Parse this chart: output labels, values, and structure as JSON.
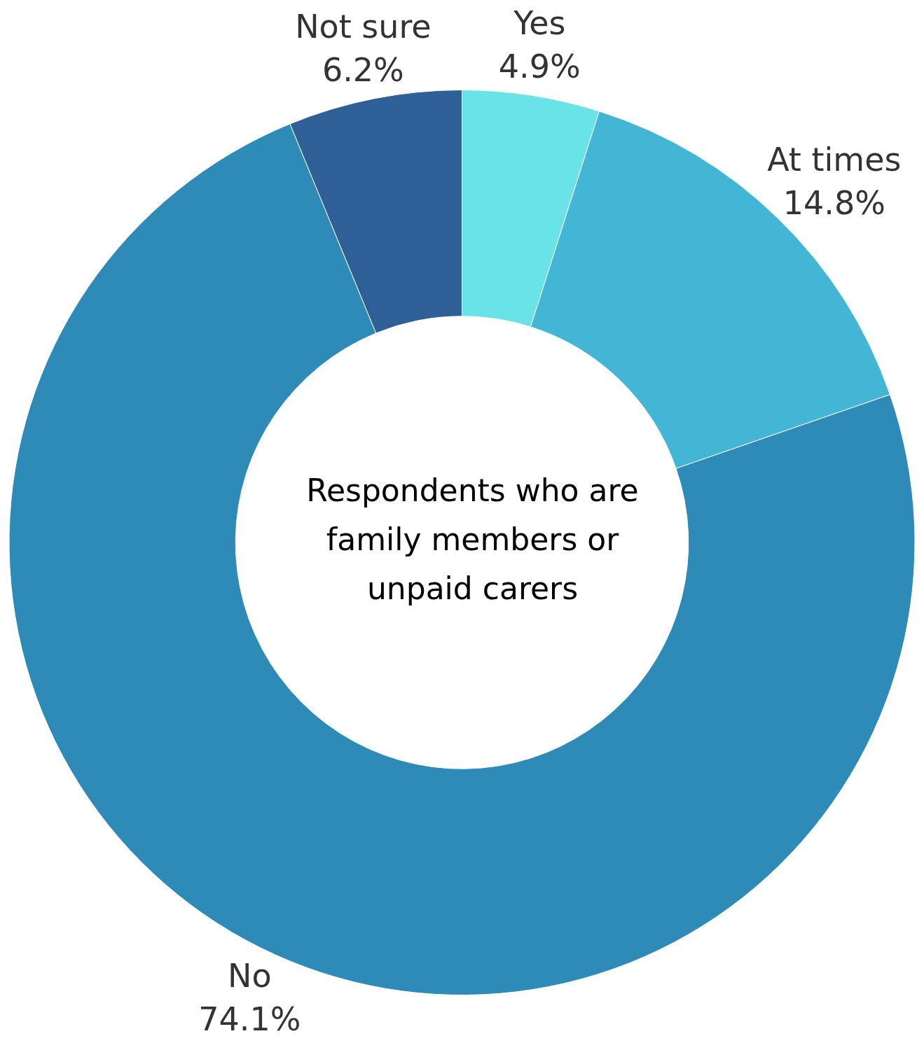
{
  "chart_data": {
    "type": "donut",
    "title": "Respondents who are family members or unpaid carers",
    "categories": [
      "Yes",
      "At times",
      "No",
      "Not sure"
    ],
    "values": [
      4.9,
      14.8,
      74.1,
      6.2
    ],
    "value_labels": [
      "4.9%",
      "14.8%",
      "74.1%",
      "6.2%"
    ],
    "colors": [
      "#6ae3e6",
      "#43b6d6",
      "#2e8bb8",
      "#2e5f97"
    ],
    "legend": false
  }
}
